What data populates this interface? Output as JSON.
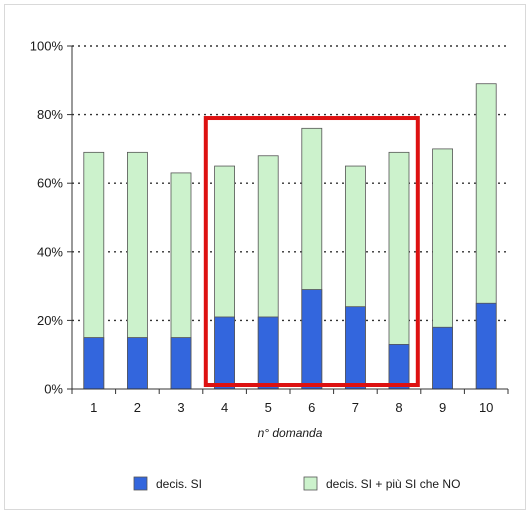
{
  "chart_data": {
    "type": "bar",
    "stacked": false,
    "overlap": true,
    "categories": [
      "1",
      "2",
      "3",
      "4",
      "5",
      "6",
      "7",
      "8",
      "9",
      "10"
    ],
    "series": [
      {
        "name": "decis. SI + più SI che NO",
        "color": "#ccf2cc",
        "values": [
          69,
          69,
          63,
          65,
          68,
          76,
          65,
          69,
          70,
          89
        ]
      },
      {
        "name": "decis. SI",
        "color": "#3366dd",
        "values": [
          15,
          15,
          15,
          21,
          21,
          29,
          24,
          13,
          18,
          25
        ]
      }
    ],
    "xlabel": "n° domanda",
    "ylabel": "",
    "ylim": [
      0,
      100
    ],
    "yticks": [
      "0%",
      "20%",
      "40%",
      "60%",
      "80%",
      "100%"
    ],
    "ytick_values": [
      0,
      20,
      40,
      60,
      80,
      100
    ],
    "grid": true,
    "legend_position": "bottom",
    "legend": [
      {
        "label": "decis. SI",
        "color": "#3366dd"
      },
      {
        "label": "decis. SI + più SI che NO",
        "color": "#ccf2cc"
      }
    ],
    "highlight": {
      "from_category": "4",
      "to_category": "8",
      "to_value": 79,
      "color": "#dd1111"
    }
  }
}
